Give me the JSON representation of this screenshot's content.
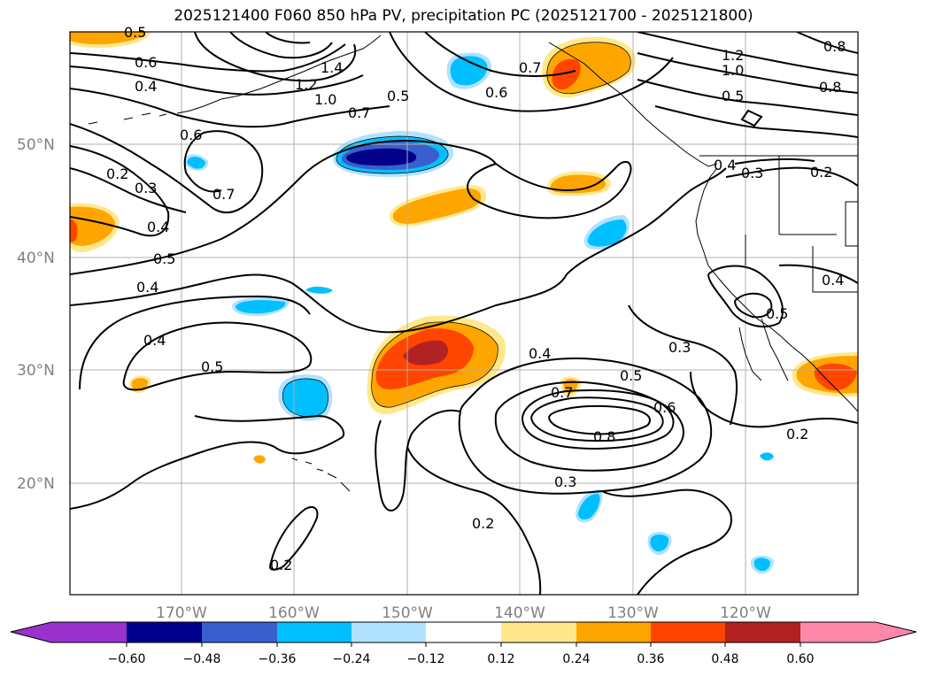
{
  "title": "2025121400 F060 850 hPa PV, precipitation PC (2025121700 - 2025121800)",
  "map": {
    "latitude_labels": [
      "50°N",
      "40°N",
      "30°N",
      "20°N"
    ],
    "longitude_labels": [
      "170°W",
      "160°W",
      "150°W",
      "140°W",
      "130°W",
      "120°W"
    ],
    "contour_labels": [
      "0.5",
      "0.6",
      "0.4",
      "1.4",
      "1.2",
      "1.0",
      "0.7",
      "0.5",
      "0.6",
      "0.7",
      "1.2",
      "1.0",
      "0.5",
      "0.8",
      "0.8",
      "0.6",
      "0.2",
      "0.3",
      "0.7",
      "0.4",
      "0.5",
      "0.4",
      "0.4",
      "0.3",
      "0.2",
      "0.4",
      "0.5",
      "0.4",
      "0.5",
      "0.3",
      "0.4",
      "0.5",
      "0.6",
      "0.7",
      "0.8",
      "0.3",
      "0.2",
      "0.2",
      "0.2"
    ]
  },
  "colorbar": {
    "ticks": [
      "−0.60",
      "−0.48",
      "−0.36",
      "−0.24",
      "−0.12",
      "0.12",
      "0.24",
      "0.36",
      "0.48",
      "0.60"
    ],
    "colors": [
      "#9932cc",
      "#00008b",
      "#3a5fcd",
      "#00bfff",
      "#b0e2ff",
      "#ffffff",
      "#ffe88c",
      "#ffa500",
      "#ff4500",
      "#b22222",
      "#ff88aa"
    ]
  }
}
